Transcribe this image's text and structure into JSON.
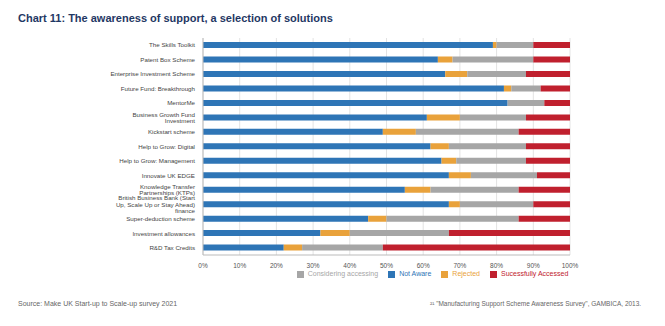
{
  "chart_data": {
    "type": "bar",
    "title": "Chart 11: The awareness of support, a selection of solutions",
    "source": "Source: Make UK Start-up to Scale-up survey 2021",
    "footnote": "²¹ \"Manufacturing Support Scheme Awareness Survey\", GAMBICA, 2013.",
    "orientation": "horizontal",
    "stacked": true,
    "grid": true,
    "legend": "bottom",
    "categories": [
      "The Skills Toolkit",
      "Patent Box Scheme",
      "Enterprise Investment Scheme",
      "Future Fund: Breakthrough",
      "MentorMe",
      "Business Growth Fund Investment",
      "Kickstart scheme",
      "Help to Grow: Digital",
      "Help to Grow: Management",
      "Innovate UK EDGE",
      "Knowledge Transfer Partnerships (KTPs)",
      "British Business Bank (Start Up, Scale Up or Stay Ahead) finance",
      "Super-deduction scheme",
      "Investment allowances",
      "R&D Tax Credits"
    ],
    "series": [
      {
        "name": "Not Aware",
        "color": "#2E75B6",
        "values": [
          79,
          64,
          66,
          82,
          83,
          61,
          49,
          62,
          65,
          67,
          55,
          67,
          45,
          32,
          22
        ]
      },
      {
        "name": "Rejected",
        "color": "#E9A23B",
        "values": [
          1,
          4,
          6,
          2,
          0,
          9,
          9,
          5,
          4,
          6,
          7,
          3,
          5,
          8,
          5
        ]
      },
      {
        "name": "Considering accessing",
        "color": "#A6A6A6",
        "values": [
          10,
          22,
          16,
          8,
          10,
          18,
          28,
          21,
          19,
          18,
          24,
          20,
          36,
          27,
          22
        ]
      },
      {
        "name": "Sucessfully Accessed",
        "color": "#C0202E",
        "values": [
          10,
          10,
          12,
          8,
          7,
          12,
          14,
          12,
          12,
          9,
          14,
          10,
          14,
          33,
          51
        ]
      }
    ],
    "xlim": [
      0,
      100
    ],
    "xticks": [
      {
        "value": 0,
        "label": "0%"
      },
      {
        "value": 10,
        "label": "10%"
      },
      {
        "value": 20,
        "label": "20%"
      },
      {
        "value": 30,
        "label": "30%"
      },
      {
        "value": 40,
        "label": "40%"
      },
      {
        "value": 50,
        "label": "50%"
      },
      {
        "value": 60,
        "label": "60%"
      },
      {
        "value": 70,
        "label": "70%"
      },
      {
        "value": 80,
        "label": "80%"
      },
      {
        "value": 90,
        "label": "90%"
      },
      {
        "value": 100,
        "label": "100%"
      }
    ]
  }
}
